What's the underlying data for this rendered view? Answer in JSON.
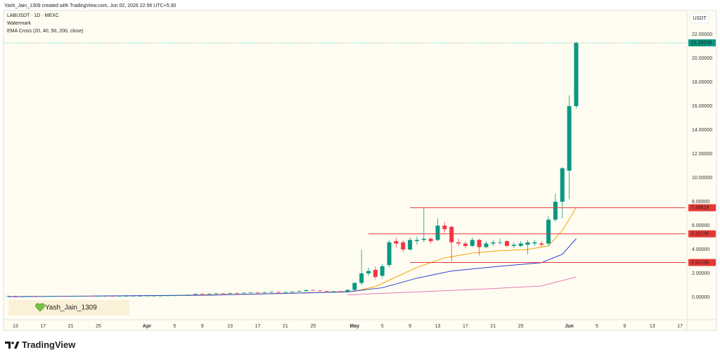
{
  "chart_data": {
    "type": "candlestick",
    "attribution": "Yash_Jain_1309 created with TradingView.com, Jun 02, 2026 22:56 UTC+5:30",
    "title": "LABUSDT · 1D · MEXC",
    "indicators": [
      "Watermark",
      "EMA Cross (20, 40, 50, 200, close)"
    ],
    "currency": "USDT",
    "watermark": "Yash_Jain_1309",
    "brand": "TradingView",
    "up_color": "#089981",
    "down_color": "#f23645",
    "x": [
      "2026-03-12",
      "2026-03-13",
      "2026-03-14",
      "2026-03-15",
      "2026-03-16",
      "2026-03-17",
      "2026-03-18",
      "2026-03-19",
      "2026-03-20",
      "2026-03-21",
      "2026-03-22",
      "2026-03-23",
      "2026-03-24",
      "2026-03-25",
      "2026-03-26",
      "2026-03-27",
      "2026-03-28",
      "2026-03-29",
      "2026-03-30",
      "2026-03-31",
      "2026-04-01",
      "2026-04-02",
      "2026-04-03",
      "2026-04-04",
      "2026-04-05",
      "2026-04-06",
      "2026-04-07",
      "2026-04-08",
      "2026-04-09",
      "2026-04-10",
      "2026-04-11",
      "2026-04-12",
      "2026-04-13",
      "2026-04-14",
      "2026-04-15",
      "2026-04-16",
      "2026-04-17",
      "2026-04-18",
      "2026-04-19",
      "2026-04-20",
      "2026-04-21",
      "2026-04-22",
      "2026-04-23",
      "2026-04-24",
      "2026-04-25",
      "2026-04-26",
      "2026-04-27",
      "2026-04-28",
      "2026-04-29",
      "2026-04-30",
      "2026-05-01",
      "2026-05-02",
      "2026-05-03",
      "2026-05-04",
      "2026-05-05",
      "2026-05-06",
      "2026-05-07",
      "2026-05-08",
      "2026-05-09",
      "2026-05-10",
      "2026-05-11",
      "2026-05-12",
      "2026-05-13",
      "2026-05-14",
      "2026-05-15",
      "2026-05-16",
      "2026-05-17",
      "2026-05-18",
      "2026-05-19",
      "2026-05-20",
      "2026-05-21",
      "2026-05-22",
      "2026-05-23",
      "2026-05-24",
      "2026-05-25",
      "2026-05-26",
      "2026-05-27",
      "2026-05-28",
      "2026-05-29",
      "2026-05-30",
      "2026-05-31",
      "2026-06-01",
      "2026-06-02"
    ],
    "open": [
      0.1,
      0.11,
      0.1,
      0.1,
      0.11,
      0.1,
      0.1,
      0.11,
      0.11,
      0.1,
      0.1,
      0.11,
      0.11,
      0.1,
      0.11,
      0.11,
      0.1,
      0.11,
      0.11,
      0.12,
      0.12,
      0.13,
      0.13,
      0.14,
      0.15,
      0.16,
      0.18,
      0.22,
      0.28,
      0.26,
      0.3,
      0.33,
      0.31,
      0.36,
      0.34,
      0.38,
      0.4,
      0.37,
      0.42,
      0.45,
      0.41,
      0.44,
      0.47,
      0.52,
      0.6,
      0.56,
      0.52,
      0.48,
      0.5,
      0.46,
      0.62,
      1.2,
      2.0,
      2.3,
      1.8,
      2.7,
      4.7,
      4.6,
      4.0,
      4.7,
      4.8,
      4.9,
      4.8,
      6.0,
      5.9,
      4.6,
      4.5,
      4.3,
      4.8,
      4.2,
      4.5,
      4.6,
      4.7,
      4.3,
      4.3,
      4.4,
      4.5,
      4.5,
      4.5,
      6.5,
      8.0,
      10.6,
      16.0
    ],
    "high": [
      0.13,
      0.13,
      0.12,
      0.13,
      0.13,
      0.12,
      0.13,
      0.13,
      0.13,
      0.12,
      0.13,
      0.13,
      0.13,
      0.13,
      0.13,
      0.13,
      0.13,
      0.13,
      0.14,
      0.14,
      0.15,
      0.15,
      0.16,
      0.17,
      0.18,
      0.2,
      0.24,
      0.31,
      0.3,
      0.32,
      0.36,
      0.35,
      0.38,
      0.38,
      0.4,
      0.43,
      0.42,
      0.44,
      0.48,
      0.47,
      0.46,
      0.5,
      0.55,
      0.64,
      0.63,
      0.58,
      0.54,
      0.53,
      0.52,
      0.66,
      1.25,
      4.0,
      2.5,
      2.6,
      2.8,
      4.8,
      5.0,
      4.8,
      5.0,
      5.1,
      7.5,
      5.0,
      6.6,
      6.3,
      6.0,
      4.9,
      4.7,
      5.0,
      4.9,
      4.7,
      4.8,
      4.9,
      4.8,
      4.6,
      4.7,
      4.8,
      4.8,
      4.7,
      6.8,
      8.7,
      10.9,
      16.9,
      21.4
    ],
    "low": [
      0.08,
      0.08,
      0.08,
      0.08,
      0.08,
      0.08,
      0.08,
      0.09,
      0.08,
      0.08,
      0.08,
      0.09,
      0.08,
      0.08,
      0.09,
      0.08,
      0.08,
      0.09,
      0.09,
      0.1,
      0.1,
      0.11,
      0.12,
      0.12,
      0.13,
      0.14,
      0.16,
      0.2,
      0.24,
      0.24,
      0.28,
      0.29,
      0.29,
      0.32,
      0.32,
      0.36,
      0.35,
      0.35,
      0.4,
      0.39,
      0.39,
      0.42,
      0.45,
      0.5,
      0.54,
      0.5,
      0.46,
      0.46,
      0.44,
      0.44,
      0.55,
      1.0,
      1.8,
      1.5,
      1.6,
      2.5,
      4.2,
      3.8,
      3.9,
      4.4,
      4.6,
      4.5,
      4.7,
      5.4,
      3.0,
      4.3,
      4.1,
      4.2,
      3.5,
      4.1,
      4.3,
      4.4,
      4.2,
      4.1,
      4.2,
      3.6,
      4.3,
      4.2,
      4.3,
      6.3,
      6.6,
      8.2,
      15.8
    ],
    "close": [
      0.11,
      0.1,
      0.1,
      0.11,
      0.1,
      0.1,
      0.11,
      0.11,
      0.1,
      0.1,
      0.11,
      0.11,
      0.1,
      0.11,
      0.11,
      0.1,
      0.11,
      0.11,
      0.12,
      0.12,
      0.13,
      0.13,
      0.14,
      0.15,
      0.16,
      0.18,
      0.22,
      0.28,
      0.26,
      0.3,
      0.33,
      0.31,
      0.36,
      0.34,
      0.38,
      0.4,
      0.37,
      0.42,
      0.45,
      0.41,
      0.44,
      0.47,
      0.52,
      0.6,
      0.56,
      0.52,
      0.48,
      0.5,
      0.46,
      0.62,
      1.2,
      2.0,
      2.2,
      1.7,
      2.6,
      4.6,
      4.5,
      4.0,
      4.8,
      4.8,
      4.9,
      4.7,
      6.0,
      5.7,
      4.6,
      4.5,
      4.3,
      4.8,
      4.2,
      4.5,
      4.6,
      4.6,
      4.3,
      4.4,
      4.5,
      4.6,
      4.6,
      4.4,
      6.5,
      8.0,
      10.8,
      16.0,
      21.29258
    ],
    "lines": [
      {
        "color": "#f5a000",
        "x": [
          "2026-04-01",
          "2026-04-15",
          "2026-04-25",
          "2026-05-01",
          "2026-05-04",
          "2026-05-07",
          "2026-05-10",
          "2026-05-14",
          "2026-05-18",
          "2026-05-22",
          "2026-05-26",
          "2026-05-29",
          "2026-05-31",
          "2026-06-02"
        ],
        "values": [
          0.12,
          0.25,
          0.38,
          0.5,
          0.9,
          1.7,
          2.5,
          3.3,
          3.7,
          3.9,
          4.0,
          4.3,
          5.6,
          7.5
        ]
      },
      {
        "color": "#2f3bd1",
        "x": [
          "2026-03-12",
          "2026-04-10",
          "2026-04-30",
          "2026-05-05",
          "2026-05-10",
          "2026-05-15",
          "2026-05-22",
          "2026-05-28",
          "2026-05-31",
          "2026-06-02"
        ],
        "values": [
          0.05,
          0.18,
          0.45,
          0.8,
          1.6,
          2.2,
          2.6,
          2.9,
          3.6,
          4.9
        ]
      },
      {
        "color": "#e87ab3",
        "x": [
          "2026-04-30",
          "2026-05-10",
          "2026-05-20",
          "2026-05-28",
          "2026-06-02"
        ],
        "values": [
          0.2,
          0.45,
          0.7,
          0.95,
          1.7
        ]
      }
    ],
    "levels": [
      {
        "value": 7.49518,
        "from": "2026-05-09"
      },
      {
        "value": 5.31236,
        "from": "2026-05-03"
      },
      {
        "value": 2.91246,
        "from": "2026-05-09"
      }
    ],
    "level_color": "#e53935",
    "last_price": 21.29258,
    "xlim": [
      "2026-03-12",
      "2026-06-18"
    ],
    "xticks": [
      {
        "value": "2026-03-13",
        "label": "13"
      },
      {
        "value": "2026-03-17",
        "label": "17"
      },
      {
        "value": "2026-03-21",
        "label": "21"
      },
      {
        "value": "2026-03-25",
        "label": "25"
      },
      {
        "value": "2026-04-01",
        "label": "Apr"
      },
      {
        "value": "2026-04-05",
        "label": "5"
      },
      {
        "value": "2026-04-09",
        "label": "9"
      },
      {
        "value": "2026-04-13",
        "label": "13"
      },
      {
        "value": "2026-04-17",
        "label": "17"
      },
      {
        "value": "2026-04-21",
        "label": "21"
      },
      {
        "value": "2026-04-25",
        "label": "25"
      },
      {
        "value": "2026-05-01",
        "label": "May"
      },
      {
        "value": "2026-05-05",
        "label": "5"
      },
      {
        "value": "2026-05-09",
        "label": "9"
      },
      {
        "value": "2026-05-13",
        "label": "13"
      },
      {
        "value": "2026-05-17",
        "label": "17"
      },
      {
        "value": "2026-05-21",
        "label": "21"
      },
      {
        "value": "2026-05-25",
        "label": "25"
      },
      {
        "value": "2026-06-01",
        "label": "Jun"
      },
      {
        "value": "2026-06-05",
        "label": "5"
      },
      {
        "value": "2026-06-09",
        "label": "9"
      },
      {
        "value": "2026-06-13",
        "label": "13"
      },
      {
        "value": "2026-06-17",
        "label": "17"
      }
    ],
    "ylim": [
      -1.88,
      24.0
    ],
    "yticks": [
      {
        "value": 0,
        "label": "0.00000"
      },
      {
        "value": 2,
        "label": "2.00000"
      },
      {
        "value": 4,
        "label": "4.00000"
      },
      {
        "value": 6,
        "label": "6.00000"
      },
      {
        "value": 8,
        "label": "8.00000"
      },
      {
        "value": 10,
        "label": "10.00000"
      },
      {
        "value": 12,
        "label": "12.00000"
      },
      {
        "value": 14,
        "label": "14.00000"
      },
      {
        "value": 16,
        "label": "16.00000"
      },
      {
        "value": 18,
        "label": "18.00000"
      },
      {
        "value": 20,
        "label": "20.00000"
      },
      {
        "value": 22,
        "label": "22.00000"
      }
    ]
  }
}
